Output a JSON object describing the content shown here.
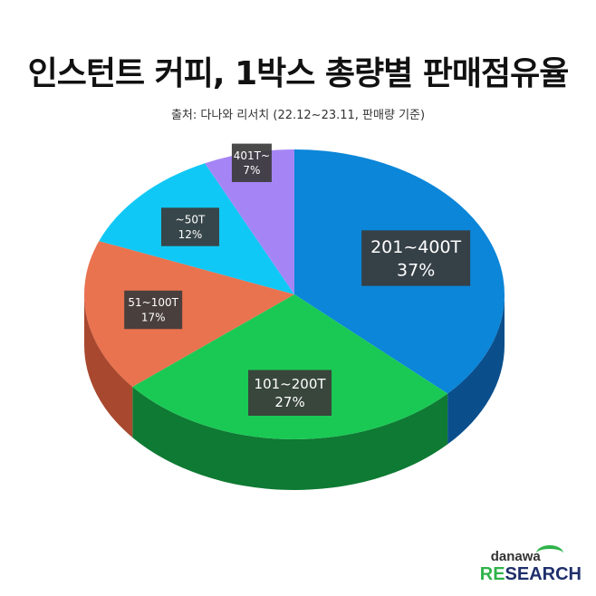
{
  "chart_data": {
    "type": "pie",
    "title": "인스턴트 커피, 1박스 총량별 판매점유율",
    "subtitle": "출처: 다나와 리서치 (22.12~23.11, 판매량 기준)",
    "slices": [
      {
        "label": "201~400T",
        "value": 37,
        "pct_text": "37%",
        "color": "#0b86d9",
        "side": "#0a4f8c"
      },
      {
        "label": "101~200T",
        "value": 27,
        "pct_text": "27%",
        "color": "#1ac954",
        "side": "#0e7a33"
      },
      {
        "label": "51~100T",
        "value": 17,
        "pct_text": "17%",
        "color": "#e9724f",
        "side": "#a8492f"
      },
      {
        "label": "~50T",
        "value": 12,
        "pct_text": "12%",
        "color": "#10c8f5",
        "side": "#0b8fb0"
      },
      {
        "label": "401T~",
        "value": 7,
        "pct_text": "7%",
        "color": "#a585f5",
        "side": "#6f57b5"
      }
    ]
  },
  "logo": {
    "top": "danawa",
    "bottom_re": "RE",
    "bottom_rest": "SEARCH"
  }
}
